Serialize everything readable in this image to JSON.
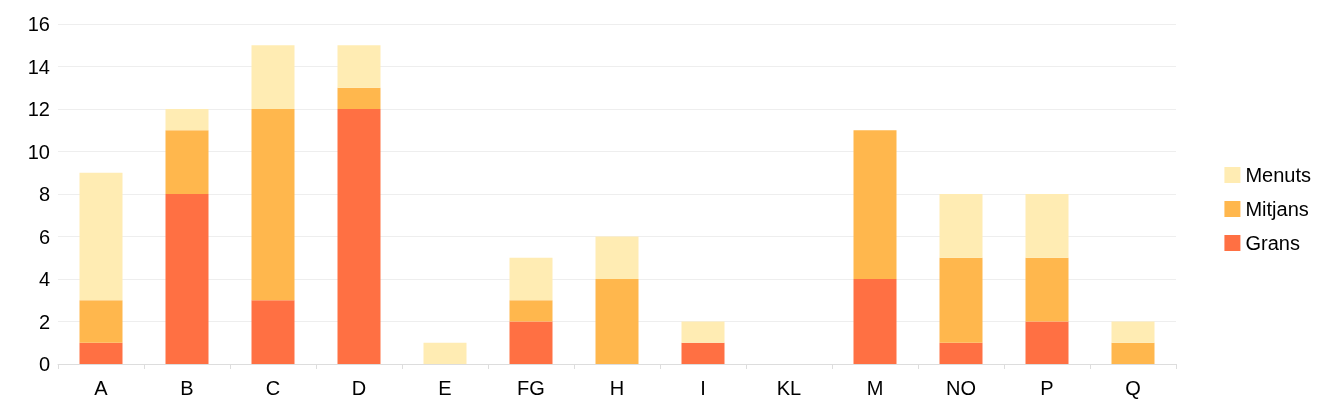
{
  "chart_data": {
    "type": "bar",
    "stacked": true,
    "categories": [
      "A",
      "B",
      "C",
      "D",
      "E",
      "FG",
      "H",
      "I",
      "KL",
      "M",
      "NO",
      "P",
      "Q"
    ],
    "series": [
      {
        "name": "Grans",
        "color": "#ff7043",
        "values": [
          1,
          8,
          3,
          12,
          0,
          2,
          0,
          1,
          0,
          4,
          1,
          2,
          0
        ]
      },
      {
        "name": "Mitjans",
        "color": "#ffb74d",
        "values": [
          2,
          3,
          9,
          1,
          0,
          1,
          4,
          0,
          0,
          7,
          4,
          3,
          1
        ]
      },
      {
        "name": "Menuts",
        "color": "#ffecb3",
        "values": [
          6,
          1,
          3,
          2,
          1,
          2,
          2,
          1,
          0,
          0,
          3,
          3,
          1
        ]
      }
    ],
    "ylim": [
      0,
      16
    ],
    "yticks": [
      0,
      2,
      4,
      6,
      8,
      10,
      12,
      14,
      16
    ],
    "grid": "y",
    "legend": "right"
  }
}
